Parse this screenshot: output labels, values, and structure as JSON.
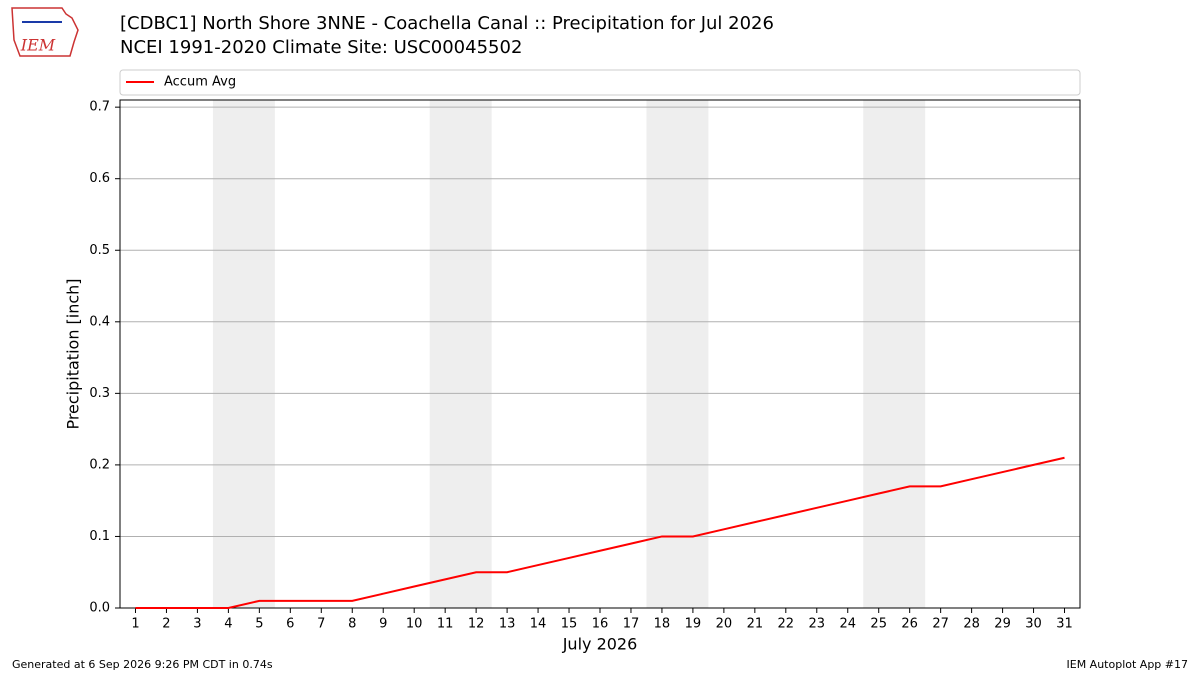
{
  "logo_text": "IEM",
  "chart_data": {
    "type": "line",
    "title": "[CDBC1] North Shore 3NNE - Coachella Canal :: Precipitation for Jul 2026",
    "subtitle": "NCEI 1991-2020 Climate Site: USC00045502",
    "xlabel": "July 2026",
    "ylabel": "Precipitation [inch]",
    "x": [
      1,
      2,
      3,
      4,
      5,
      6,
      7,
      8,
      9,
      10,
      11,
      12,
      13,
      14,
      15,
      16,
      17,
      18,
      19,
      20,
      21,
      22,
      23,
      24,
      25,
      26,
      27,
      28,
      29,
      30,
      31
    ],
    "series": [
      {
        "name": "Accum Avg",
        "color": "#ff0000",
        "values": [
          0,
          0,
          0,
          0,
          0.01,
          0.01,
          0.01,
          0.01,
          0.02,
          0.03,
          0.04,
          0.05,
          0.05,
          0.06,
          0.07,
          0.08,
          0.09,
          0.1,
          0.1,
          0.11,
          0.12,
          0.13,
          0.14,
          0.15,
          0.16,
          0.17,
          0.17,
          0.18,
          0.19,
          0.2,
          0.21
        ]
      }
    ],
    "weekend_spans": [
      [
        3.5,
        5.5
      ],
      [
        10.5,
        12.5
      ],
      [
        17.5,
        19.5
      ],
      [
        24.5,
        26.5
      ]
    ],
    "weekend_color": "#eeeeee",
    "xlim": [
      0.5,
      31.5
    ],
    "ylim": [
      0,
      0.71
    ],
    "xticks": [
      1,
      2,
      3,
      4,
      5,
      6,
      7,
      8,
      9,
      10,
      11,
      12,
      13,
      14,
      15,
      16,
      17,
      18,
      19,
      20,
      21,
      22,
      23,
      24,
      25,
      26,
      27,
      28,
      29,
      30,
      31
    ],
    "yticks": [
      {
        "value": 0,
        "label": "0.0"
      },
      0.1,
      0.2,
      0.3,
      0.4,
      0.5,
      0.6,
      0.7
    ],
    "grid": true,
    "legend": "top",
    "footer_left": "Generated at 6 Sep 2026 9:26 PM CDT in 0.74s",
    "footer_right": "IEM Autoplot App #17"
  }
}
